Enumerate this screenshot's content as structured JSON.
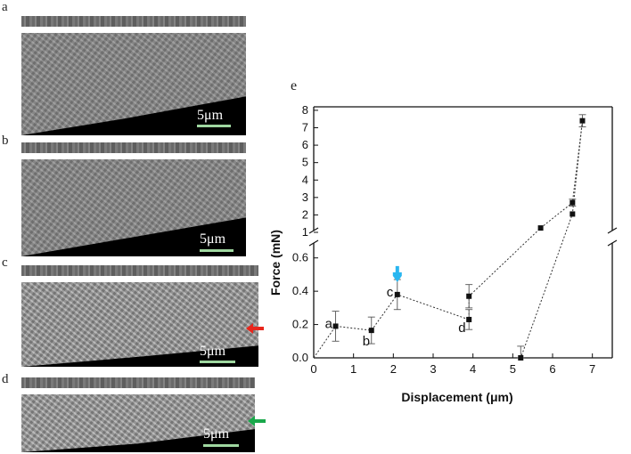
{
  "panels": {
    "a": {
      "letter": "a",
      "scale": "5μm"
    },
    "b": {
      "letter": "b",
      "scale": "5μm"
    },
    "c": {
      "letter": "c",
      "scale": "5μm"
    },
    "d": {
      "letter": "d",
      "scale": "5μm"
    },
    "e": {
      "letter": "e"
    }
  },
  "colors": {
    "red_arrow": "#e8261c",
    "green_arrow": "#1aa84b",
    "blue_arrow": "#29b6f0",
    "scale_bar": "#9fd7a0"
  },
  "chart_data": {
    "type": "scatter",
    "xlabel": "Displacement (μm)",
    "ylabel": "Force (mN)",
    "xlim": [
      0,
      7.5
    ],
    "x_ticks": [
      0,
      1,
      2,
      3,
      4,
      5,
      6,
      7
    ],
    "y_axis_break": true,
    "lower_ylim": [
      0,
      0.7
    ],
    "lower_y_ticks": [
      0.0,
      0.2,
      0.4,
      0.6
    ],
    "upper_ylim": [
      1,
      8.2
    ],
    "upper_y_ticks": [
      1,
      2,
      3,
      4,
      5,
      6,
      7,
      8
    ],
    "grid": false,
    "series": [
      {
        "points": [
          {
            "x": 0.55,
            "y": 0.19,
            "err": 0.09,
            "label": "a"
          },
          {
            "x": 1.45,
            "y": 0.165,
            "err": 0.08,
            "label": "b"
          },
          {
            "x": 2.1,
            "y": 0.38,
            "err": 0.09,
            "label": "c"
          },
          {
            "x": 3.9,
            "y": 0.23,
            "err": 0.06,
            "label": "d"
          },
          {
            "x": 3.9,
            "y": 0.37,
            "err": 0.07,
            "label": ""
          },
          {
            "x": 5.7,
            "y": 1.25,
            "err": 0,
            "label": ""
          },
          {
            "x": 6.5,
            "y": 2.7,
            "err": 0.2,
            "label": ""
          },
          {
            "x": 6.75,
            "y": 7.4,
            "err": 0.35,
            "label": ""
          },
          {
            "x": 6.5,
            "y": 2.05,
            "err": 0,
            "label": ""
          },
          {
            "x": 5.2,
            "y": 0.0,
            "err": 0.07,
            "label": ""
          }
        ]
      }
    ],
    "loading_path": [
      [
        0,
        0
      ],
      [
        0.55,
        0.19
      ],
      [
        1.45,
        0.165
      ],
      [
        2.1,
        0.38
      ],
      [
        3.9,
        0.23
      ],
      [
        3.9,
        0.37
      ],
      [
        5.7,
        1.25
      ],
      [
        6.5,
        2.7
      ],
      [
        6.75,
        7.4
      ]
    ],
    "unloading_path": [
      [
        6.75,
        7.4
      ],
      [
        6.5,
        2.05
      ],
      [
        5.2,
        0.0
      ]
    ],
    "annotations": [
      {
        "type": "arrow",
        "color": "blue",
        "x": 2.1,
        "y": 0.38
      }
    ]
  }
}
